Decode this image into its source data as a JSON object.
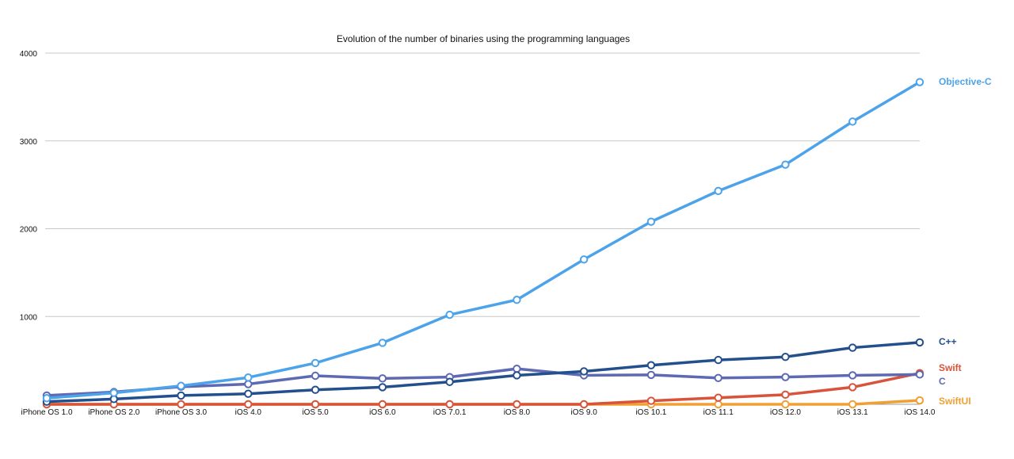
{
  "chart_data": {
    "type": "line",
    "title": "Evolution of the number of binaries using the programming languages",
    "xlabel": "",
    "ylabel": "",
    "ylim": [
      0,
      4000
    ],
    "yticks": [
      1000,
      2000,
      3000,
      4000
    ],
    "grid": true,
    "legend": "right (labels at line ends)",
    "categories": [
      "iPhone OS 1.0",
      "iPhone OS 2.0",
      "iPhone OS 3.0",
      "iOS 4.0",
      "iOS 5.0",
      "iOS 6.0",
      "iOS 7.0.1",
      "iOS 8.0",
      "iOS 9.0",
      "iOS 10.1",
      "iOS 11.1",
      "iOS 12.0",
      "iOS 13.1",
      "iOS 14.0"
    ],
    "series": [
      {
        "name": "Objective-C",
        "color": "#4da3ea",
        "values": [
          70,
          130,
          210,
          305,
          470,
          700,
          1020,
          1190,
          1650,
          2080,
          2430,
          2730,
          3220,
          3670
        ]
      },
      {
        "name": "C++",
        "color": "#234f8c",
        "values": [
          30,
          60,
          100,
          120,
          165,
          195,
          255,
          330,
          375,
          445,
          505,
          540,
          645,
          705
        ]
      },
      {
        "name": "Swift",
        "color": "#d9533b",
        "values": [
          0,
          0,
          0,
          0,
          0,
          0,
          0,
          0,
          0,
          40,
          75,
          110,
          195,
          355
        ]
      },
      {
        "name": "C",
        "color": "#5e69b3",
        "values": [
          100,
          140,
          200,
          230,
          325,
          295,
          310,
          405,
          330,
          335,
          300,
          310,
          330,
          340
        ]
      },
      {
        "name": "SwiftUI",
        "color": "#f0a033",
        "values": [
          0,
          0,
          0,
          0,
          0,
          0,
          0,
          0,
          0,
          0,
          0,
          0,
          0,
          45
        ]
      }
    ]
  }
}
